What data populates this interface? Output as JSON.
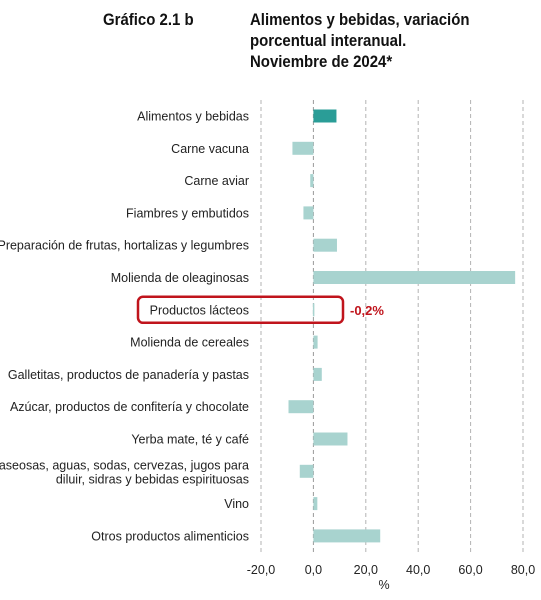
{
  "header": {
    "label": "Gráfico 2.1 b",
    "title_lines": [
      "Alimentos y bebidas, variación",
      "porcentual interanual.",
      "Noviembre de 2024*"
    ]
  },
  "chart_data": {
    "type": "bar",
    "orientation": "horizontal",
    "categories": [
      [
        "Alimentos y bebidas"
      ],
      [
        "Carne vacuna"
      ],
      [
        "Carne aviar"
      ],
      [
        "Fiambres y embutidos"
      ],
      [
        "Preparación de frutas, hortalizas y legumbres"
      ],
      [
        "Molienda de oleaginosas"
      ],
      [
        "Productos lácteos"
      ],
      [
        "Molienda de cereales"
      ],
      [
        "Galletitas, productos de panadería y pastas"
      ],
      [
        "Azúcar, productos de confitería y chocolate"
      ],
      [
        "Yerba mate, té y café"
      ],
      [
        "Gaseosas, aguas, sodas, cervezas, jugos para",
        "diluir, sidras y bebidas espirituosas"
      ],
      [
        "Vino"
      ],
      [
        "Otros productos alimenticios"
      ]
    ],
    "values": [
      8.8,
      -8.0,
      -1.2,
      -3.8,
      9.0,
      77.0,
      -0.2,
      1.6,
      3.2,
      -9.5,
      13.0,
      -5.2,
      1.5,
      25.5
    ],
    "highlight_index": 0,
    "colors": {
      "highlight": "#2a9d97",
      "default": "#a8d3cf",
      "grid": "#b3b3b3",
      "callout": "#c0141c"
    },
    "xlim": [
      -20,
      80
    ],
    "xticks": [
      "-20,0",
      "0,0",
      "20,0",
      "40,0",
      "60,0",
      "80,0"
    ],
    "xtick_values": [
      -20,
      0,
      20,
      40,
      60,
      80
    ],
    "xlabel": "%",
    "grid": "vertical-dashed",
    "callout": {
      "category_index": 6,
      "text": "-0,2%"
    }
  }
}
